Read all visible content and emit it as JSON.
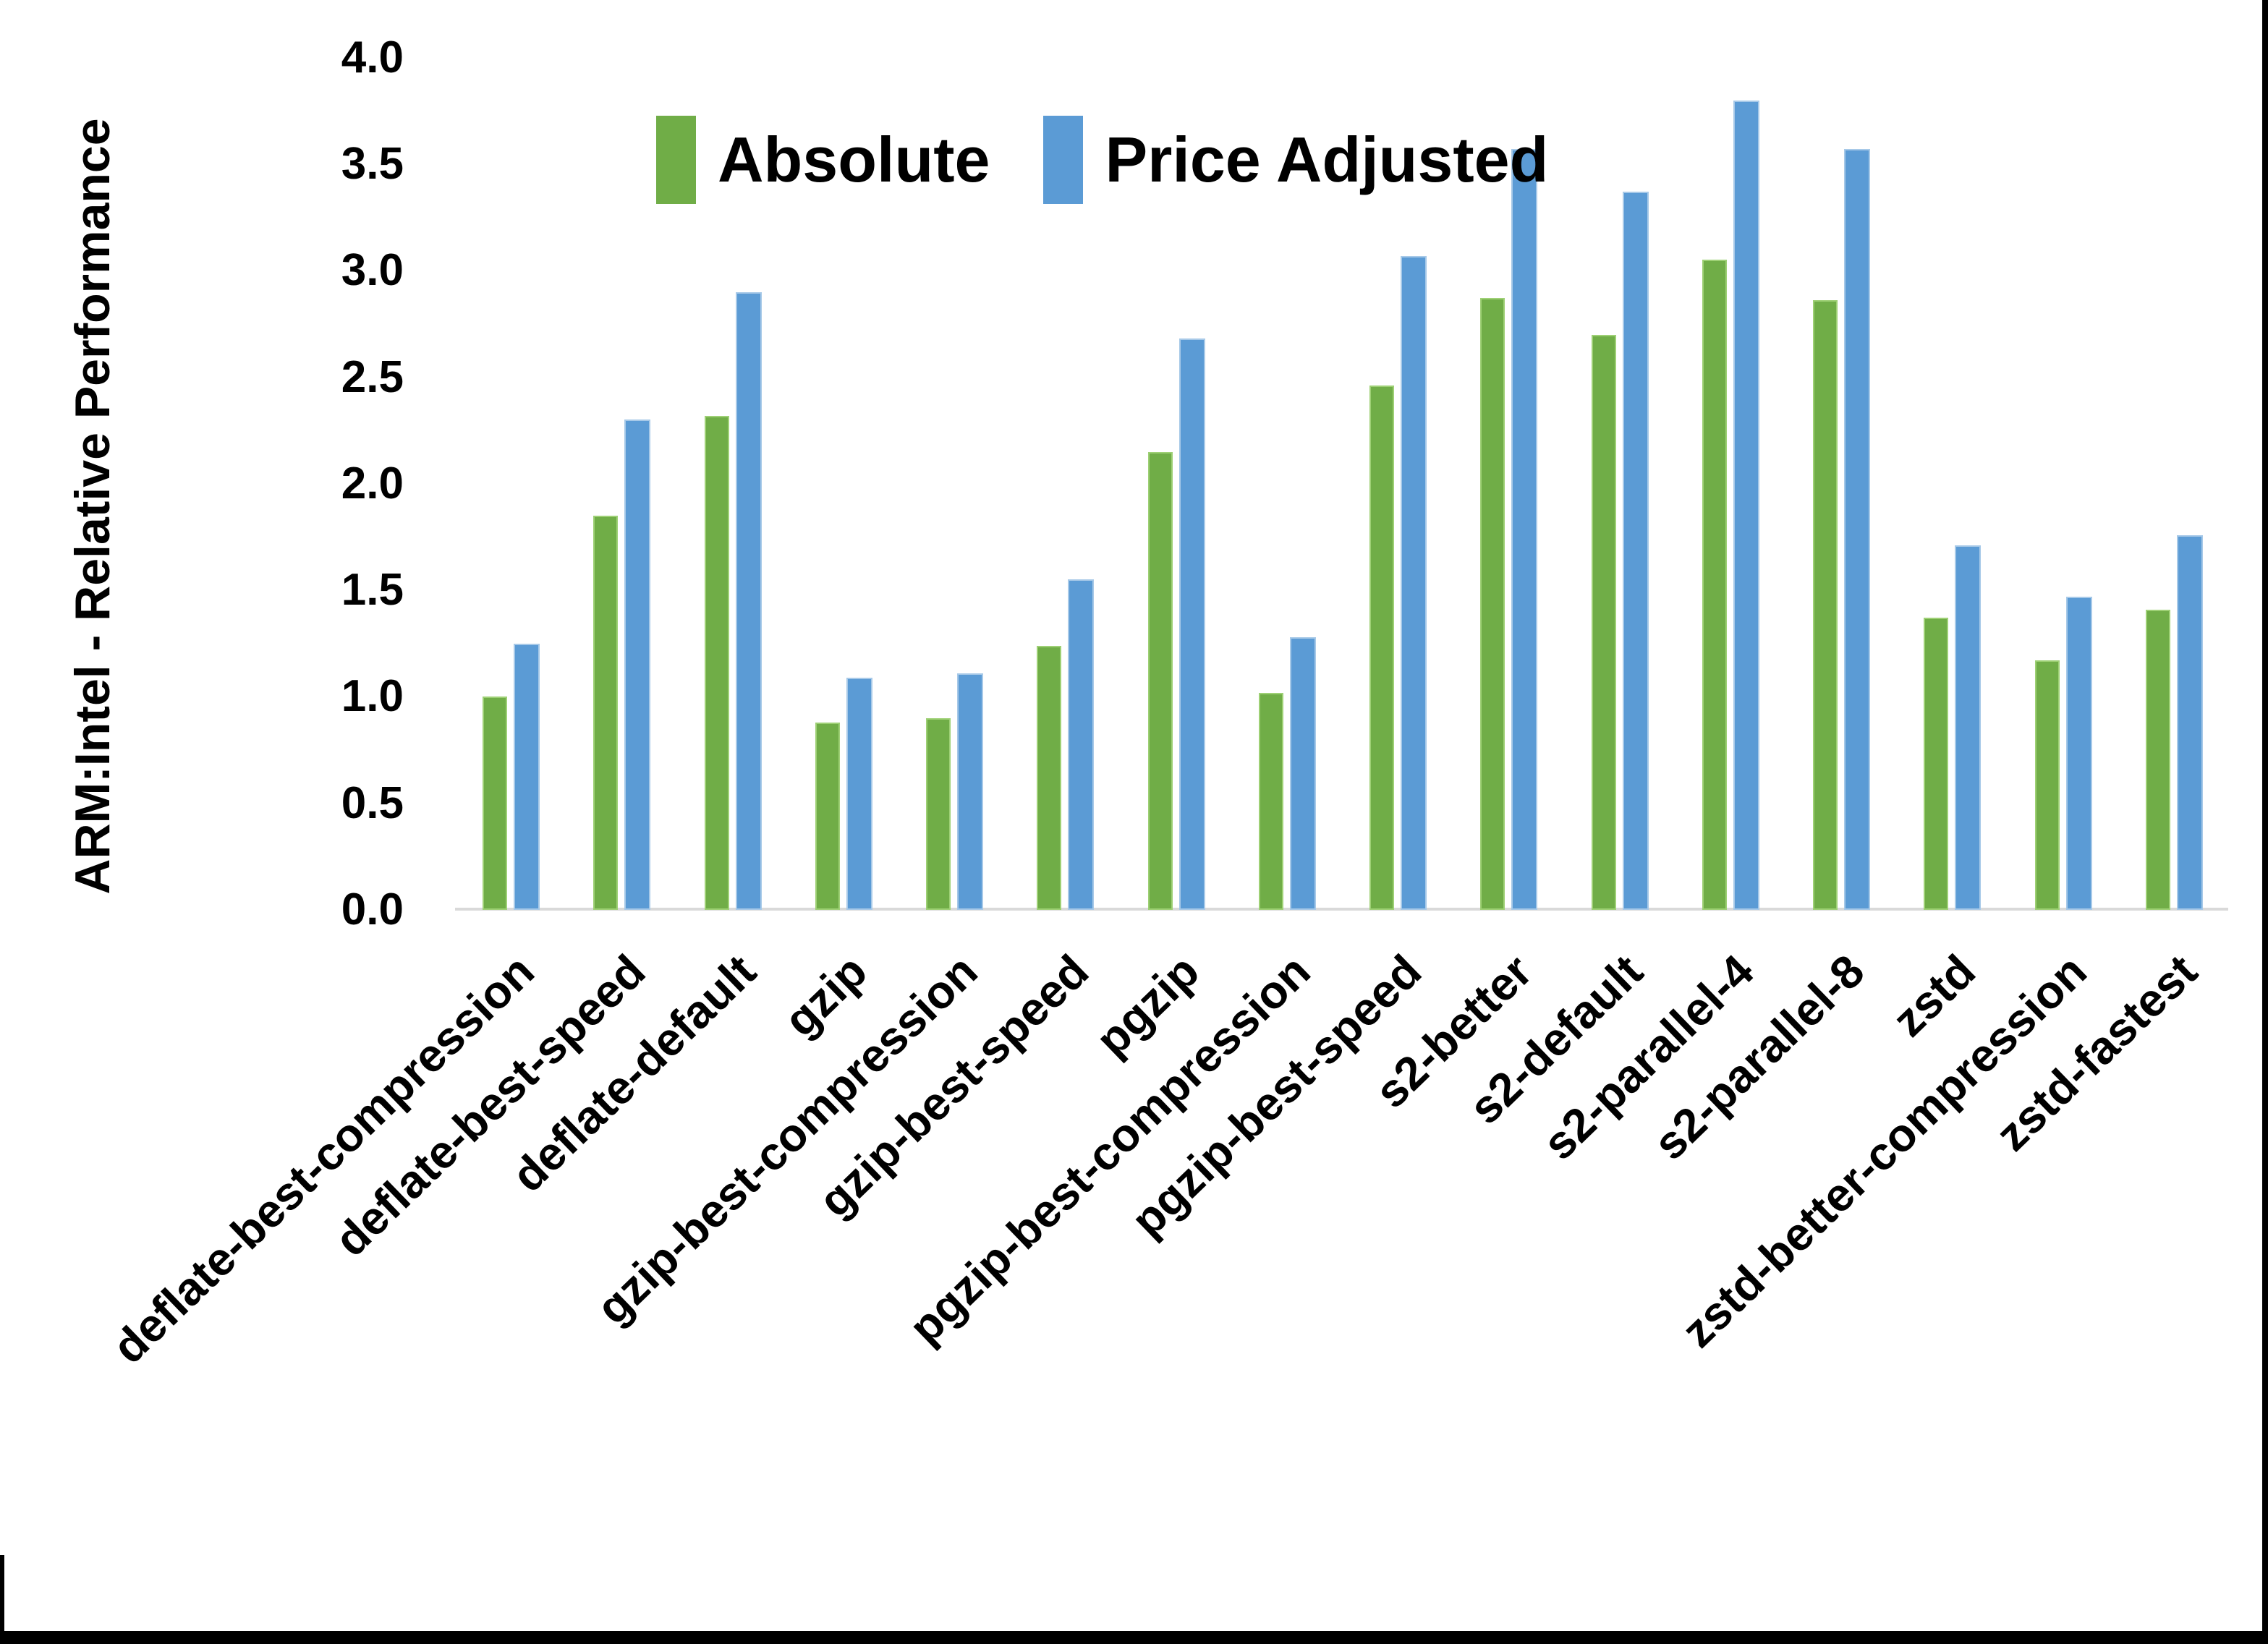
{
  "figure": {
    "background": "#ffffff",
    "border_color": "#000000",
    "axis_line_color": "#D9D9D9"
  },
  "chart_data": {
    "type": "bar",
    "title": "",
    "xlabel": "",
    "ylabel": "ARM:Intel - Relative Performance",
    "ylim": [
      0.0,
      4.0
    ],
    "ytick_step": 0.5,
    "yticks": [
      "4.0",
      "3.5",
      "3.0",
      "2.5",
      "2.0",
      "1.5",
      "1.0",
      "0.5",
      "0.0"
    ],
    "grid": false,
    "legend_position": "top-center",
    "categories": [
      "deflate-best-compression",
      "deflate-best-speed",
      "deflate-default",
      "gzip",
      "gzip-best-compression",
      "gzip-best-speed",
      "pgzip",
      "pgzip-best-compression",
      "pgzip-best-speed",
      "s2-better",
      "s2-default",
      "s2-parallel-4",
      "s2-parallel-8",
      "zstd",
      "zstd-better-compression",
      "zstd-fastest"
    ],
    "series": [
      {
        "name": "Absolute",
        "color": "#70AD47",
        "values": [
          1.0,
          1.85,
          2.32,
          0.88,
          0.9,
          1.24,
          2.15,
          1.02,
          2.46,
          2.87,
          2.7,
          3.05,
          2.86,
          1.37,
          1.17,
          1.41
        ]
      },
      {
        "name": "Price Adjusted",
        "color": "#5B9BD5",
        "values": [
          1.25,
          2.3,
          2.9,
          1.09,
          1.11,
          1.55,
          2.68,
          1.28,
          3.07,
          3.57,
          3.37,
          3.8,
          3.57,
          1.71,
          1.47,
          1.76
        ]
      }
    ]
  }
}
